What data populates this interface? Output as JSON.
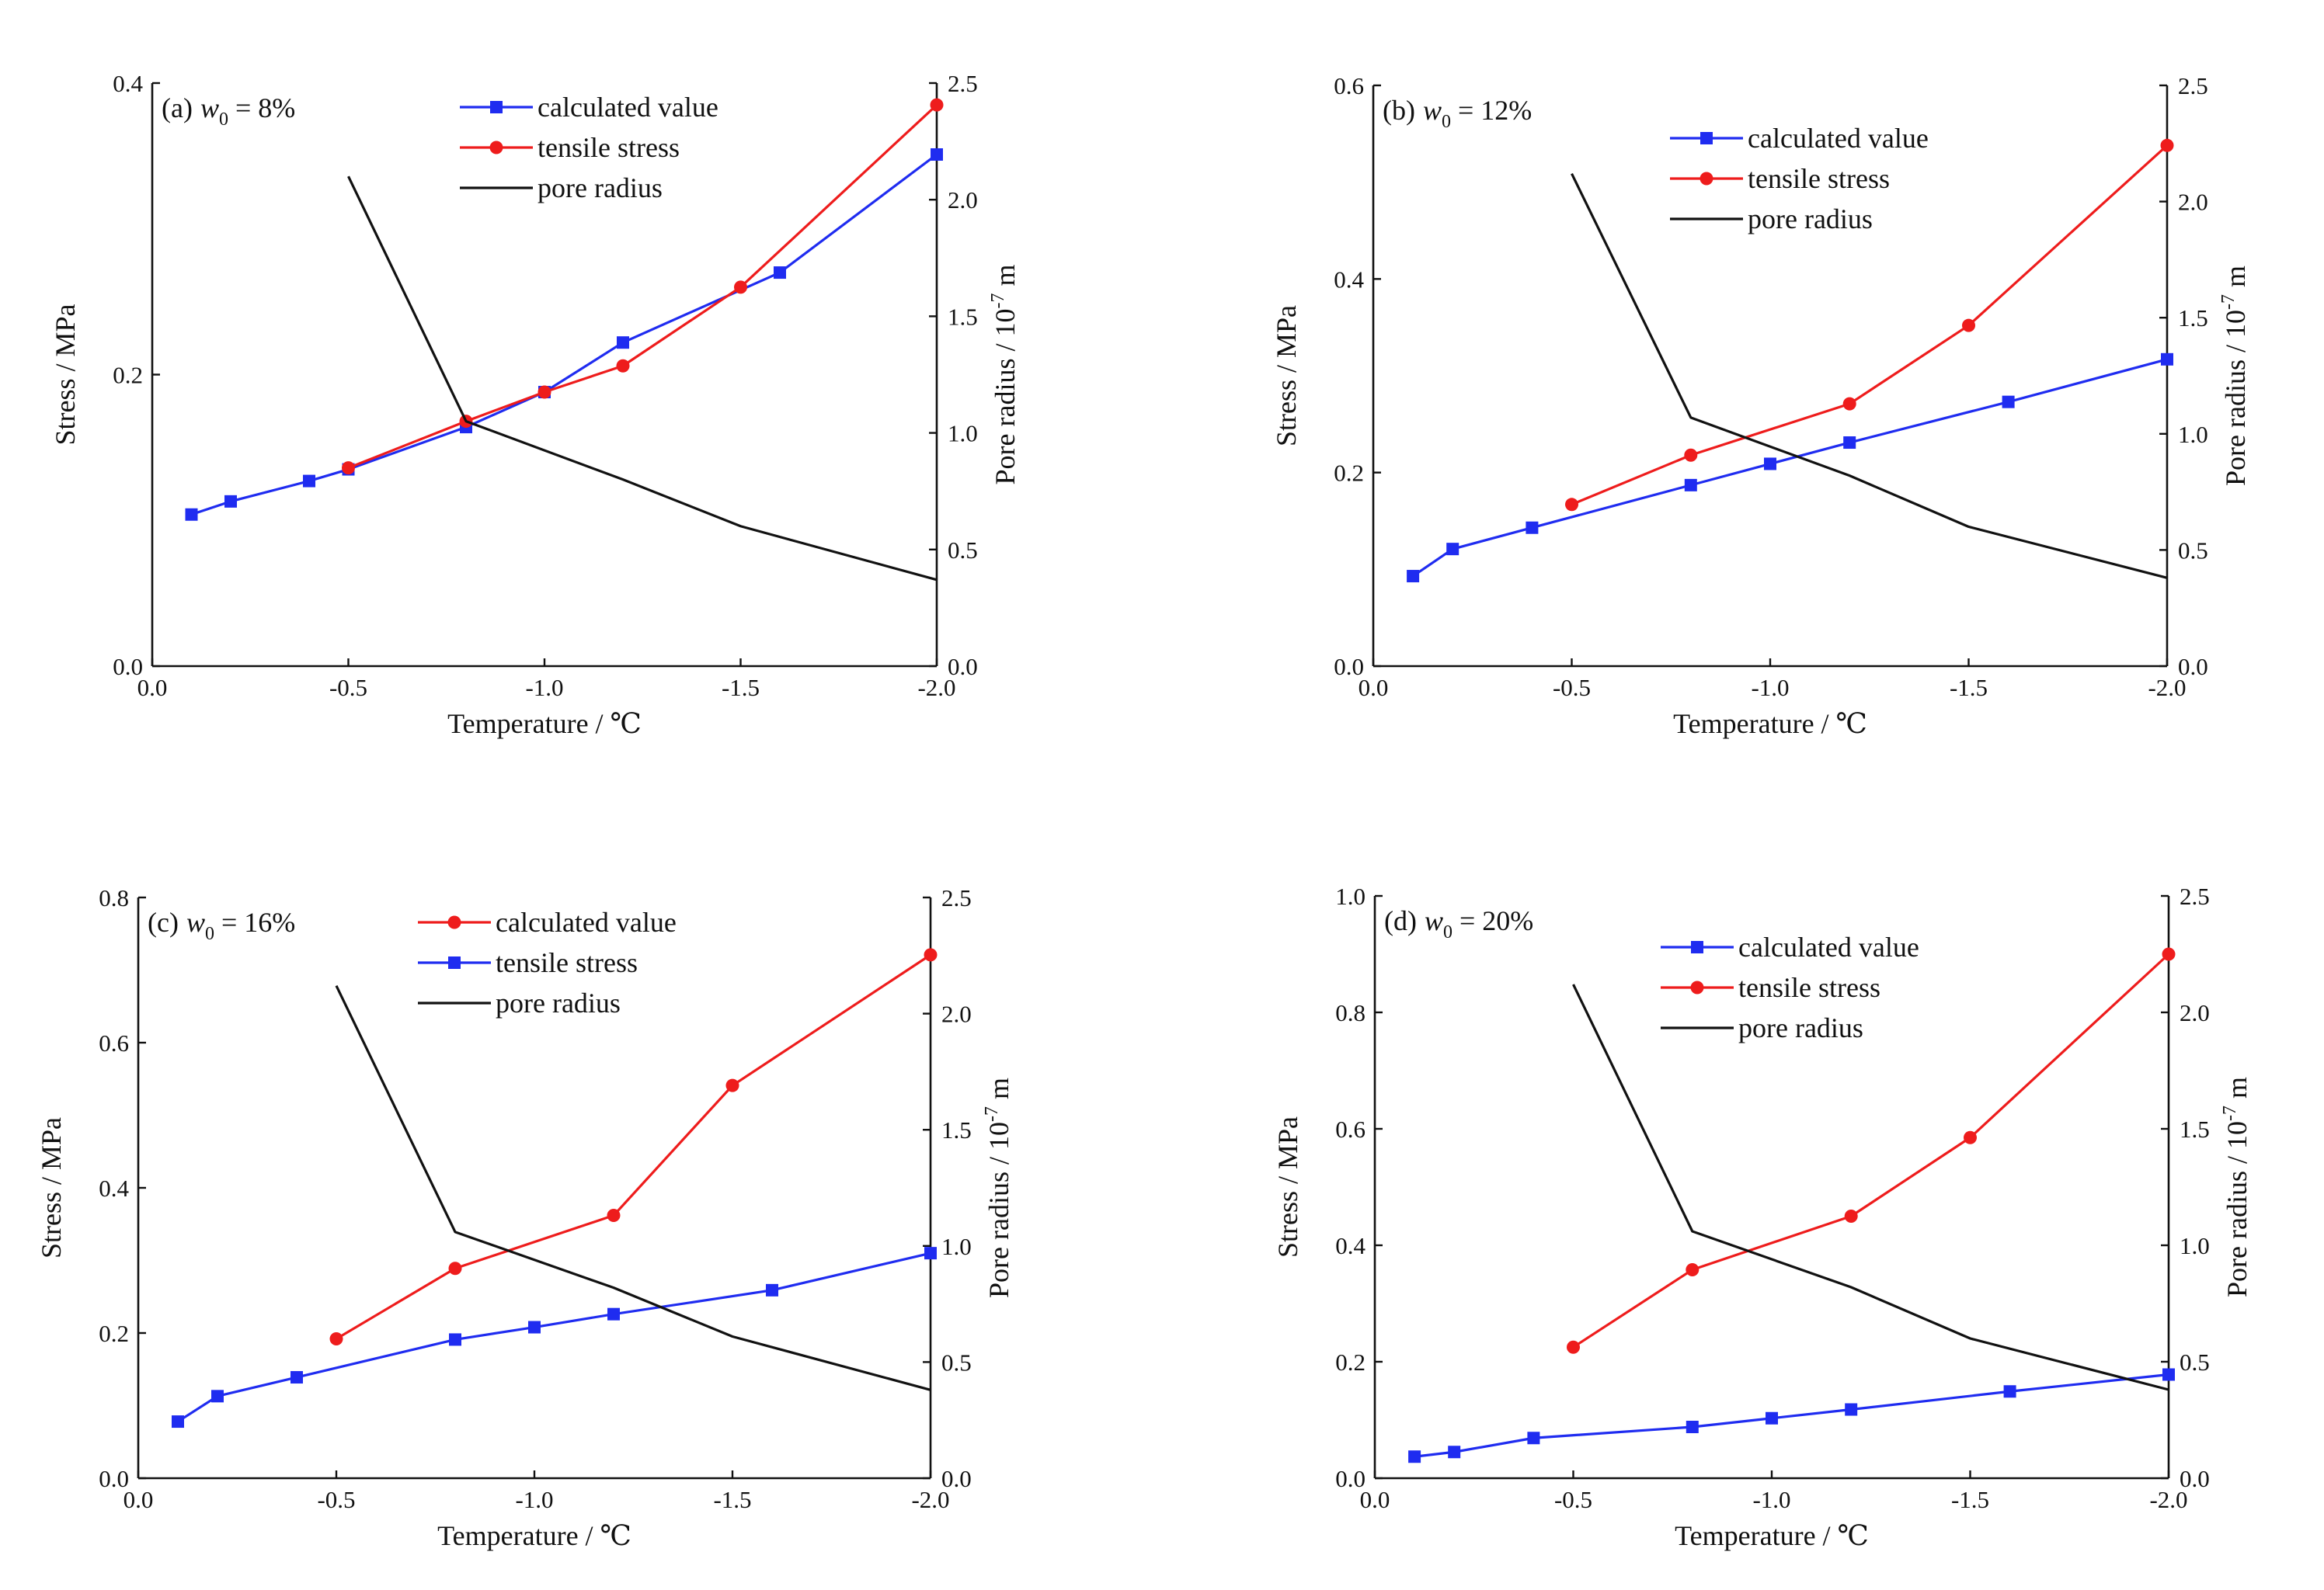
{
  "figure": {
    "background": "#ffffff"
  },
  "colors": {
    "blue": "#1f2cf0",
    "red": "#ee1c1c",
    "black": "#111111"
  },
  "chart_data": [
    {
      "id": "a",
      "panel_label": "(a)",
      "panel_var": "w",
      "panel_sub": "0",
      "panel_value": " = 8%",
      "type": "line",
      "xlabel": "Temperature / ℃",
      "ylabel": "Stress / MPa",
      "y2label_main": "Pore radius / 10",
      "y2label_exp": "-7",
      "y2label_unit": " m",
      "xlim": [
        0,
        -2.0
      ],
      "ylim": [
        0,
        0.4
      ],
      "y2lim": [
        0,
        2.5
      ],
      "xticks": [
        0,
        -0.5,
        -1.0,
        -1.5,
        -2.0
      ],
      "xticklabels": [
        "0.0",
        "-0.5",
        "-1.0",
        "-1.5",
        "-2.0"
      ],
      "yticks": [
        0,
        0.2,
        0.4
      ],
      "yticklabels": [
        "0.0",
        "0.2",
        "0.4"
      ],
      "y2ticks": [
        0,
        0.5,
        1.0,
        1.5,
        2.0,
        2.5
      ],
      "y2ticklabels": [
        "0.0",
        "0.5",
        "1.0",
        "1.5",
        "2.0",
        "2.5"
      ],
      "legend": {
        "position": "top-center"
      },
      "series": [
        {
          "name": "calculated value",
          "color": "blue",
          "marker": "square",
          "axis": "left",
          "x": [
            -0.1,
            -0.2,
            -0.4,
            -0.5,
            -0.8,
            -1.0,
            -1.2,
            -1.6,
            -2.0
          ],
          "y": [
            0.104,
            0.113,
            0.127,
            0.135,
            0.164,
            0.188,
            0.222,
            0.27,
            0.351
          ]
        },
        {
          "name": "tensile stress",
          "color": "red",
          "marker": "circle",
          "axis": "left",
          "x": [
            -0.5,
            -0.8,
            -1.0,
            -1.2,
            -1.5,
            -2.0
          ],
          "y": [
            0.136,
            0.168,
            0.188,
            0.206,
            0.26,
            0.385
          ]
        },
        {
          "name": "pore radius",
          "color": "black",
          "marker": "none",
          "axis": "right",
          "x": [
            -0.5,
            -0.8,
            -1.2,
            -1.5,
            -2.0
          ],
          "y": [
            2.1,
            1.05,
            0.8,
            0.6,
            0.37
          ]
        }
      ]
    },
    {
      "id": "b",
      "panel_label": "(b)",
      "panel_var": "w",
      "panel_sub": "0",
      "panel_value": " = 12%",
      "type": "line",
      "xlabel": "Temperature / ℃",
      "ylabel": "Stress / MPa",
      "y2label_main": "Pore radius / 10",
      "y2label_exp": "-7",
      "y2label_unit": " m",
      "xlim": [
        0,
        -2.0
      ],
      "ylim": [
        0,
        0.6
      ],
      "y2lim": [
        0,
        2.5
      ],
      "xticks": [
        0,
        -0.5,
        -1.0,
        -1.5,
        -2.0
      ],
      "xticklabels": [
        "0.0",
        "-0.5",
        "-1.0",
        "-1.5",
        "-2.0"
      ],
      "yticks": [
        0,
        0.2,
        0.4,
        0.6
      ],
      "yticklabels": [
        "0.0",
        "0.2",
        "0.4",
        "0.6"
      ],
      "y2ticks": [
        0,
        0.5,
        1.0,
        1.5,
        2.0,
        2.5
      ],
      "y2ticklabels": [
        "0.0",
        "0.5",
        "1.0",
        "1.5",
        "2.0",
        "2.5"
      ],
      "legend": {
        "position": "top-center"
      },
      "series": [
        {
          "name": "calculated value",
          "color": "blue",
          "marker": "square",
          "axis": "left",
          "x": [
            -0.1,
            -0.2,
            -0.4,
            -0.8,
            -1.0,
            -1.2,
            -1.6,
            -2.0
          ],
          "y": [
            0.093,
            0.121,
            0.143,
            0.187,
            0.209,
            0.231,
            0.273,
            0.317
          ]
        },
        {
          "name": "tensile stress",
          "color": "red",
          "marker": "circle",
          "axis": "left",
          "x": [
            -0.5,
            -0.8,
            -1.2,
            -1.5,
            -2.0
          ],
          "y": [
            0.167,
            0.218,
            0.271,
            0.352,
            0.538
          ]
        },
        {
          "name": "pore radius",
          "color": "black",
          "marker": "none",
          "axis": "right",
          "x": [
            -0.5,
            -0.8,
            -1.2,
            -1.5,
            -2.0
          ],
          "y": [
            2.12,
            1.07,
            0.82,
            0.6,
            0.38
          ]
        }
      ]
    },
    {
      "id": "c",
      "panel_label": "(c)",
      "panel_var": "w",
      "panel_sub": "0",
      "panel_value": " = 16%",
      "type": "line",
      "xlabel": "Temperature / ℃",
      "ylabel": "Stress / MPa",
      "y2label_main": "Pore radius / 10",
      "y2label_exp": "-7",
      "y2label_unit": " m",
      "xlim": [
        0,
        -2.0
      ],
      "ylim": [
        0,
        0.8
      ],
      "y2lim": [
        0,
        2.5
      ],
      "xticks": [
        0,
        -0.5,
        -1.0,
        -1.5,
        -2.0
      ],
      "xticklabels": [
        "0.0",
        "-0.5",
        "-1.0",
        "-1.5",
        "-2.0"
      ],
      "yticks": [
        0,
        0.2,
        0.4,
        0.6,
        0.8
      ],
      "yticklabels": [
        "0.0",
        "0.2",
        "0.4",
        "0.6",
        "0.8"
      ],
      "y2ticks": [
        0,
        0.5,
        1.0,
        1.5,
        2.0,
        2.5
      ],
      "y2ticklabels": [
        "0.0",
        "0.5",
        "1.0",
        "1.5",
        "2.0",
        "2.5"
      ],
      "legend": {
        "position": "top-center"
      },
      "series": [
        {
          "name": "calculated value",
          "color": "red",
          "marker": "circle",
          "axis": "left",
          "x": [
            -0.5,
            -0.8,
            -1.2,
            -1.5,
            -2.0
          ],
          "y": [
            0.192,
            0.289,
            0.362,
            0.541,
            0.721
          ]
        },
        {
          "name": "tensile stress",
          "color": "blue",
          "marker": "square",
          "axis": "left",
          "x": [
            -0.1,
            -0.2,
            -0.4,
            -0.8,
            -1.0,
            -1.2,
            -1.6,
            -2.0
          ],
          "y": [
            0.078,
            0.113,
            0.139,
            0.191,
            0.208,
            0.226,
            0.259,
            0.31
          ]
        },
        {
          "name": "pore radius",
          "color": "black",
          "marker": "none",
          "axis": "right",
          "x": [
            -0.5,
            -0.8,
            -1.2,
            -1.5,
            -2.0
          ],
          "y": [
            2.12,
            1.06,
            0.82,
            0.61,
            0.38
          ]
        }
      ]
    },
    {
      "id": "d",
      "panel_label": "(d)",
      "panel_var": "w",
      "panel_sub": "0",
      "panel_value": " = 20%",
      "type": "line",
      "xlabel": "Temperature / ℃",
      "ylabel": "Stress / MPa",
      "y2label_main": "Pore radius / 10",
      "y2label_exp": "-7",
      "y2label_unit": " m",
      "xlim": [
        0,
        -2.0
      ],
      "ylim": [
        0,
        1.0
      ],
      "y2lim": [
        0,
        2.5
      ],
      "xticks": [
        0,
        -0.5,
        -1.0,
        -1.5,
        -2.0
      ],
      "xticklabels": [
        "0.0",
        "-0.5",
        "-1.0",
        "-1.5",
        "-2.0"
      ],
      "yticks": [
        0,
        0.2,
        0.4,
        0.6,
        0.8,
        1.0
      ],
      "yticklabels": [
        "0.0",
        "0.2",
        "0.4",
        "0.6",
        "0.8",
        "1.0"
      ],
      "y2ticks": [
        0,
        0.5,
        1.0,
        1.5,
        2.0,
        2.5
      ],
      "y2ticklabels": [
        "0.0",
        "0.5",
        "1.0",
        "1.5",
        "2.0",
        "2.5"
      ],
      "legend": {
        "position": "top-center"
      },
      "series": [
        {
          "name": "calculated value",
          "color": "blue",
          "marker": "square",
          "axis": "left",
          "x": [
            -0.1,
            -0.2,
            -0.4,
            -0.8,
            -1.0,
            -1.2,
            -1.6,
            -2.0
          ],
          "y": [
            0.037,
            0.045,
            0.069,
            0.088,
            0.103,
            0.118,
            0.149,
            0.178
          ]
        },
        {
          "name": "tensile stress",
          "color": "red",
          "marker": "circle",
          "axis": "left",
          "x": [
            -0.5,
            -0.8,
            -1.2,
            -1.5,
            -2.0
          ],
          "y": [
            0.225,
            0.358,
            0.45,
            0.585,
            0.9
          ]
        },
        {
          "name": "pore radius",
          "color": "black",
          "marker": "none",
          "axis": "right",
          "x": [
            -0.5,
            -0.8,
            -1.2,
            -1.5,
            -2.0
          ],
          "y": [
            2.12,
            1.06,
            0.82,
            0.6,
            0.38
          ]
        }
      ]
    }
  ]
}
